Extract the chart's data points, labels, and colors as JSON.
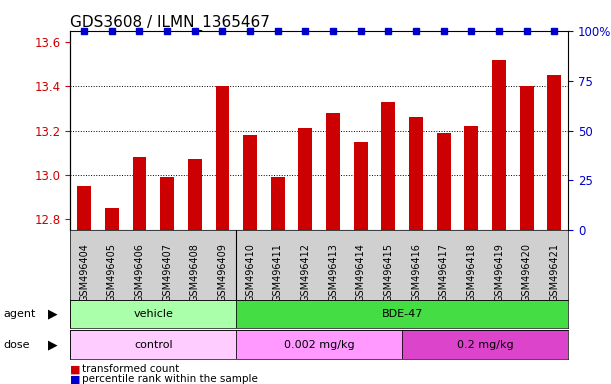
{
  "title": "GDS3608 / ILMN_1365467",
  "samples": [
    "GSM496404",
    "GSM496405",
    "GSM496406",
    "GSM496407",
    "GSM496408",
    "GSM496409",
    "GSM496410",
    "GSM496411",
    "GSM496412",
    "GSM496413",
    "GSM496414",
    "GSM496415",
    "GSM496416",
    "GSM496417",
    "GSM496418",
    "GSM496419",
    "GSM496420",
    "GSM496421"
  ],
  "bar_values": [
    12.95,
    12.85,
    13.08,
    12.99,
    13.07,
    13.4,
    13.18,
    12.99,
    13.21,
    13.28,
    13.15,
    13.33,
    13.26,
    13.19,
    13.22,
    13.52,
    13.4,
    13.45
  ],
  "bar_color": "#cc0000",
  "percentile_color": "#0000cc",
  "ylim_left": [
    12.75,
    13.65
  ],
  "ylim_right": [
    0,
    100
  ],
  "yticks_left": [
    12.8,
    13.0,
    13.2,
    13.4,
    13.6
  ],
  "yticks_right": [
    0,
    25,
    50,
    75,
    100
  ],
  "grid_values": [
    13.0,
    13.2,
    13.4
  ],
  "vehicle_color": "#aaffaa",
  "bde47_color": "#44dd44",
  "control_color": "#ffccff",
  "dose1_color": "#ff99ff",
  "dose2_color": "#dd44cc",
  "gray_label_color": "#d0d0d0",
  "background_color": "#ffffff",
  "title_fontsize": 11,
  "tick_fontsize": 8.5,
  "label_fontsize": 7,
  "row_fontsize": 8,
  "bar_bottom": 12.75,
  "legend_items": [
    {
      "label": "transformed count",
      "color": "#cc0000"
    },
    {
      "label": "percentile rank within the sample",
      "color": "#0000cc"
    }
  ]
}
